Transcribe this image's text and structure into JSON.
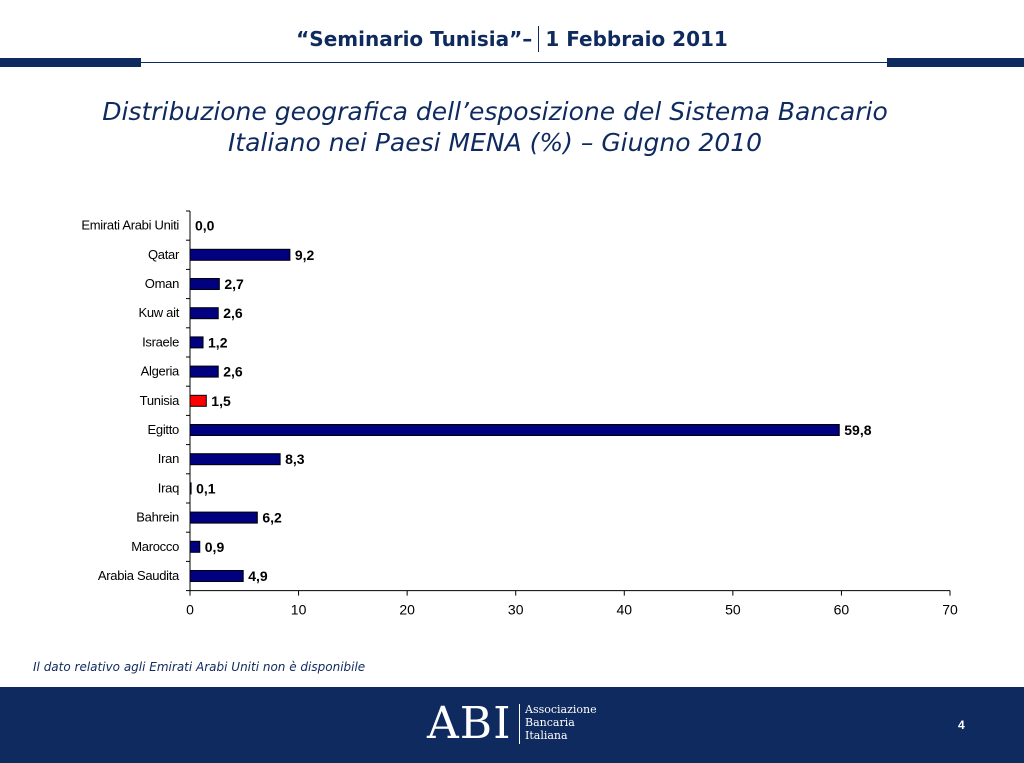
{
  "header": {
    "title_left": "“Seminario Tunisia”–",
    "title_right": "1 Febbraio 2011"
  },
  "slide": {
    "title_line1": "Distribuzione geografica dell’esposizione del Sistema Bancario",
    "title_line2": "Italiano nei Paesi MENA (%) – Giugno 2010",
    "footnote": "Il dato relativo agli Emirati Arabi Uniti non è disponibile"
  },
  "footer": {
    "logo_mark": "ABI",
    "logo_line1": "Associazione",
    "logo_line2": "Bancaria",
    "logo_line3": "Italiana",
    "page_number": "4"
  },
  "colors": {
    "brand_navy": "#0f2a5e",
    "bar_default": "#000080",
    "bar_highlight": "#ff0000"
  },
  "chart_data": {
    "type": "bar",
    "orientation": "horizontal",
    "categories": [
      "Emirati Arabi Uniti",
      "Qatar",
      "Oman",
      "Kuw ait",
      "Israele",
      "Algeria",
      "Tunisia",
      "Egitto",
      "Iran",
      "Iraq",
      "Bahrein",
      "Marocco",
      "Arabia Saudita"
    ],
    "values": [
      0.0,
      9.2,
      2.7,
      2.6,
      1.2,
      2.6,
      1.5,
      59.8,
      8.3,
      0.1,
      6.2,
      0.9,
      4.9
    ],
    "value_labels": [
      "0,0",
      "9,2",
      "2,7",
      "2,6",
      "1,2",
      "2,6",
      "1,5",
      "59,8",
      "8,3",
      "0,1",
      "6,2",
      "0,9",
      "4,9"
    ],
    "highlight_category": "Tunisia",
    "xlim": [
      0,
      70
    ],
    "xticks": [
      0,
      10,
      20,
      30,
      40,
      50,
      60,
      70
    ],
    "xtick_labels": [
      "0",
      "10",
      "20",
      "30",
      "40",
      "50",
      "60",
      "70"
    ],
    "grid": false,
    "legend": "none"
  }
}
